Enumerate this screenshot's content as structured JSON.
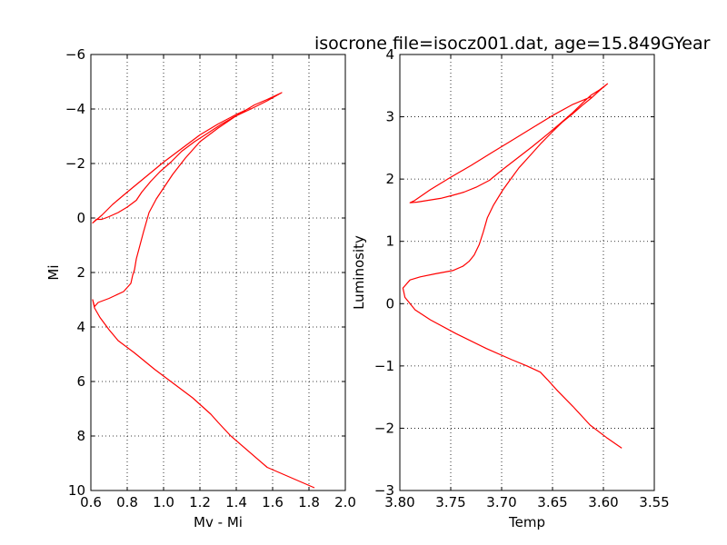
{
  "figure_title": "isocrone file=isocz001.dat, age=15.849GYear",
  "colors": {
    "line": "#ff0000",
    "grid": "#000000",
    "axes": "#000000",
    "background": "#ffffff"
  },
  "chart_data": [
    {
      "type": "line",
      "title": "",
      "xlabel": "Mv - Mi",
      "ylabel": "Mi",
      "xlim": [
        0.6,
        2.0
      ],
      "ylim": [
        10,
        -6
      ],
      "y_inverted": true,
      "grid": true,
      "xticks": [
        "0.6",
        "0.8",
        "1.0",
        "1.2",
        "1.4",
        "1.6",
        "1.8",
        "2.0"
      ],
      "yticks": [
        "−6",
        "−4",
        "−2",
        "0",
        "2",
        "4",
        "6",
        "8",
        "10"
      ],
      "series": [
        {
          "x": [
            1.83,
            1.57,
            1.37,
            1.3,
            1.26,
            1.16,
            1.08,
            0.95,
            0.84,
            0.75,
            0.7,
            0.65,
            0.62,
            0.61,
            0.62,
            0.64,
            0.7,
            0.78,
            0.82,
            0.83,
            0.84,
            0.85,
            0.87,
            0.89,
            0.92,
            0.96,
            1.0,
            1.05,
            1.12,
            1.2,
            1.3,
            1.4,
            1.5,
            1.57,
            1.65,
            1.57,
            1.48,
            1.4,
            1.32,
            1.24,
            1.17,
            1.1,
            1.04,
            0.98,
            0.93,
            0.88,
            0.85,
            0.8,
            0.75,
            0.7,
            0.66,
            0.63,
            0.61,
            0.66,
            0.72,
            0.8,
            0.9,
            1.0,
            1.1,
            1.2,
            1.3,
            1.4,
            1.48
          ],
          "y": [
            9.9,
            9.15,
            8.0,
            7.5,
            7.2,
            6.6,
            6.2,
            5.55,
            4.95,
            4.5,
            4.1,
            3.65,
            3.3,
            3.0,
            3.25,
            3.1,
            2.95,
            2.7,
            2.4,
            2.1,
            1.9,
            1.5,
            1.0,
            0.5,
            -0.2,
            -0.7,
            -1.1,
            -1.6,
            -2.2,
            -2.8,
            -3.3,
            -3.75,
            -4.15,
            -4.35,
            -4.6,
            -4.3,
            -4.0,
            -3.75,
            -3.45,
            -3.1,
            -2.8,
            -2.45,
            -2.05,
            -1.7,
            -1.35,
            -0.95,
            -0.65,
            -0.4,
            -0.2,
            -0.05,
            0.05,
            0.05,
            0.18,
            -0.1,
            -0.5,
            -0.95,
            -1.5,
            -2.05,
            -2.55,
            -3.05,
            -3.45,
            -3.8,
            -4.05
          ]
        }
      ]
    },
    {
      "type": "line",
      "title": "",
      "xlabel": "Temp",
      "ylabel": "Luminosity",
      "xlim": [
        3.8,
        3.55
      ],
      "ylim": [
        -3,
        4
      ],
      "x_inverted": true,
      "grid": true,
      "xticks": [
        "3.80",
        "3.75",
        "3.70",
        "3.65",
        "3.60",
        "3.55"
      ],
      "yticks": [
        "−3",
        "−2",
        "−1",
        "0",
        "1",
        "2",
        "3",
        "4"
      ],
      "series": [
        {
          "x": [
            3.582,
            3.597,
            3.613,
            3.63,
            3.645,
            3.655,
            3.662,
            3.675,
            3.69,
            3.715,
            3.745,
            3.77,
            3.785,
            3.795,
            3.797,
            3.79,
            3.78,
            3.765,
            3.748,
            3.738,
            3.732,
            3.727,
            3.722,
            3.718,
            3.714,
            3.708,
            3.699,
            3.692,
            3.683,
            3.672,
            3.661,
            3.65,
            3.64,
            3.63,
            3.621,
            3.612,
            3.604,
            3.596,
            3.604,
            3.612,
            3.62,
            3.63,
            3.642,
            3.655,
            3.67,
            3.685,
            3.7,
            3.712,
            3.725,
            3.737,
            3.748,
            3.76,
            3.772,
            3.783,
            3.79,
            3.786,
            3.77,
            3.75,
            3.73,
            3.71,
            3.69,
            3.67,
            3.65,
            3.63,
            3.612
          ],
          "y": [
            -2.32,
            -2.15,
            -1.95,
            -1.65,
            -1.4,
            -1.22,
            -1.1,
            -1.0,
            -0.9,
            -0.72,
            -0.48,
            -0.26,
            -0.1,
            0.1,
            0.25,
            0.38,
            0.43,
            0.48,
            0.53,
            0.6,
            0.68,
            0.78,
            0.95,
            1.15,
            1.38,
            1.58,
            1.82,
            1.98,
            2.18,
            2.38,
            2.58,
            2.76,
            2.92,
            3.05,
            3.18,
            3.3,
            3.42,
            3.53,
            3.43,
            3.35,
            3.23,
            3.07,
            2.9,
            2.72,
            2.52,
            2.33,
            2.14,
            1.98,
            1.87,
            1.79,
            1.74,
            1.69,
            1.66,
            1.63,
            1.62,
            1.65,
            1.83,
            2.03,
            2.22,
            2.42,
            2.62,
            2.82,
            3.02,
            3.2,
            3.32
          ]
        }
      ]
    }
  ]
}
